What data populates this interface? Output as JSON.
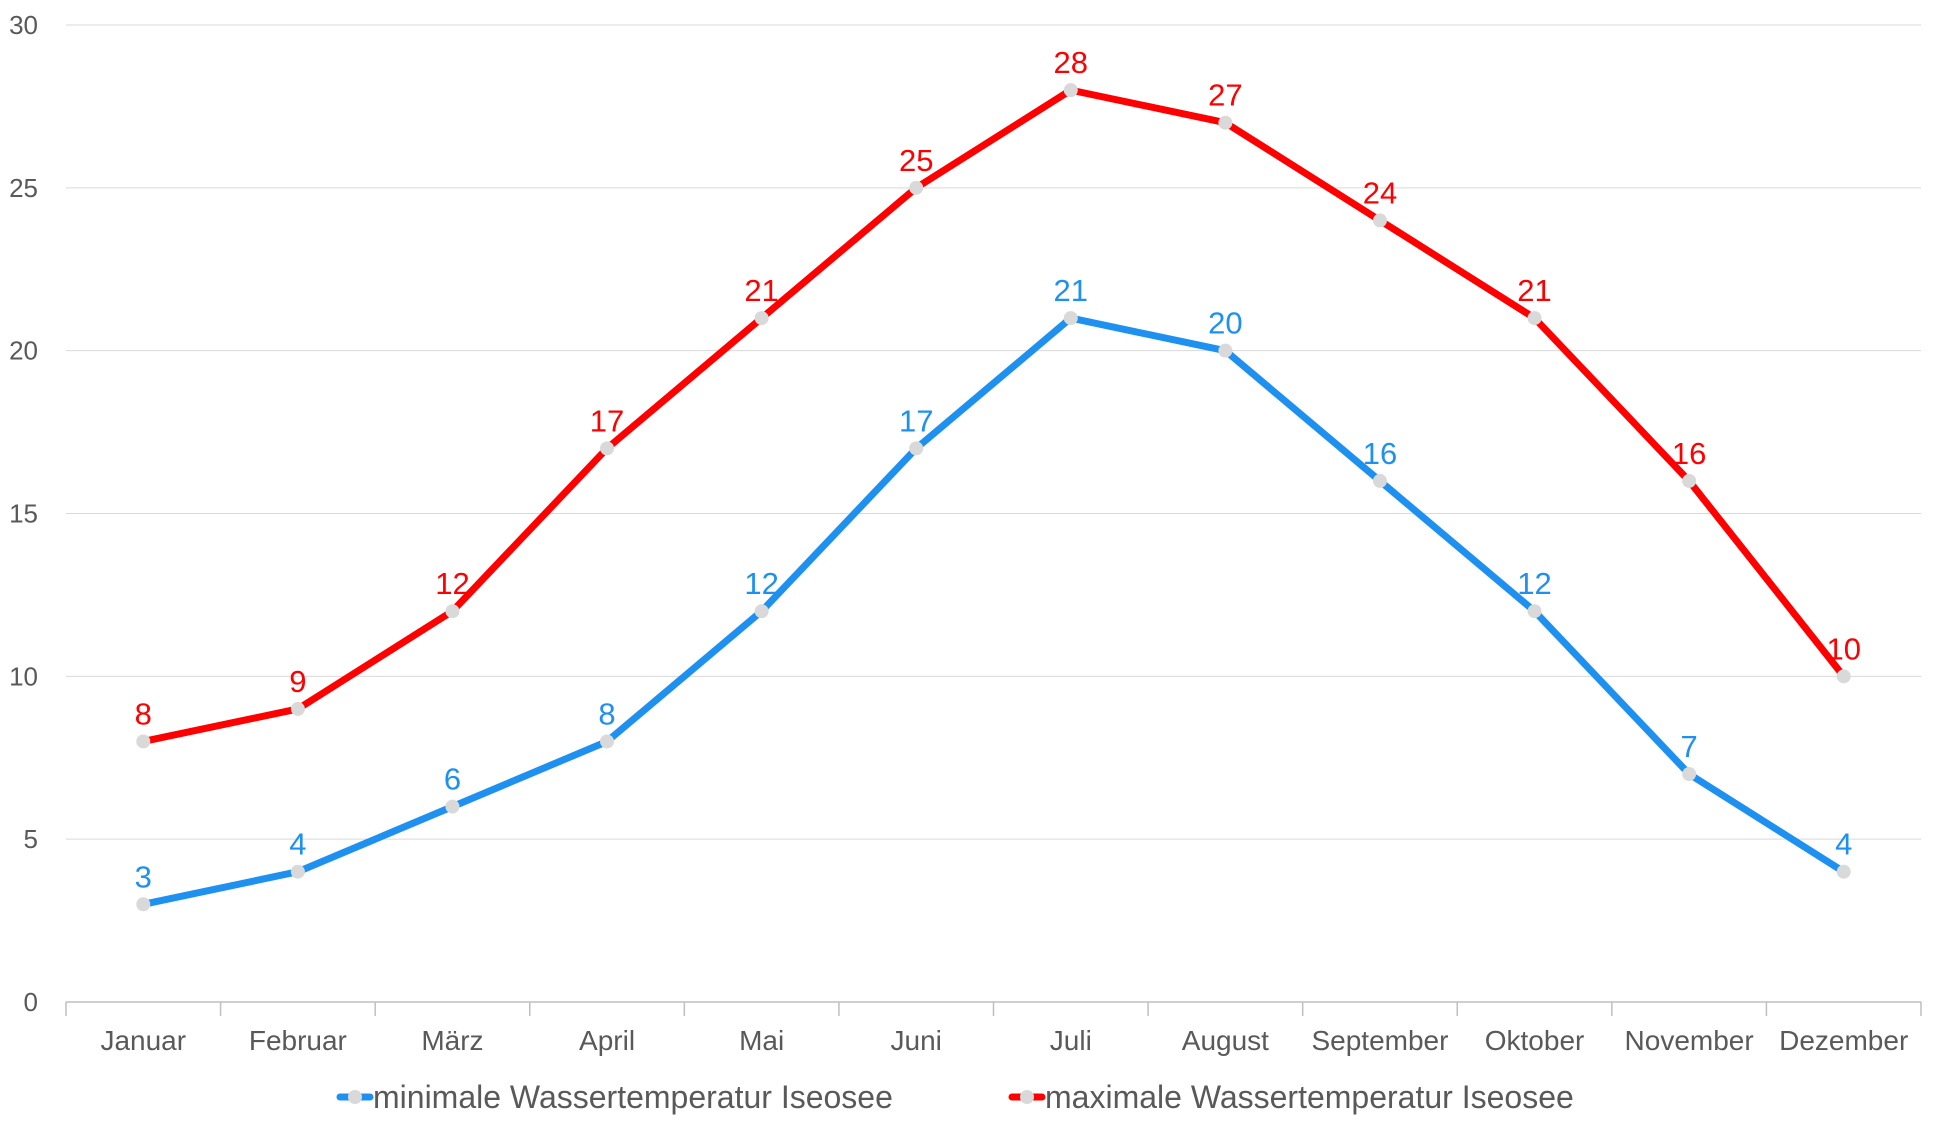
{
  "chart_data": {
    "type": "line",
    "title": "",
    "xlabel": "",
    "ylabel": "",
    "categories": [
      "Januar",
      "Februar",
      "März",
      "April",
      "Mai",
      "Juni",
      "Juli",
      "August",
      "September",
      "Oktober",
      "November",
      "Dezember"
    ],
    "ylim": [
      0,
      30
    ],
    "yticks": [
      0,
      5,
      10,
      15,
      20,
      25,
      30
    ],
    "grid": "horizontal",
    "legend_position": "bottom",
    "series": [
      {
        "name": "minimale Wassertemperatur Iseosee",
        "color": "#1E90F0",
        "values": [
          3,
          4,
          6,
          8,
          12,
          17,
          21,
          20,
          16,
          12,
          7,
          4
        ]
      },
      {
        "name": "maximale Wassertemperatur Iseosee",
        "color": "#FF0000",
        "values": [
          8,
          9,
          12,
          17,
          21,
          25,
          28,
          27,
          24,
          21,
          16,
          10
        ]
      }
    ],
    "marker_color": "#D9D9D9"
  }
}
